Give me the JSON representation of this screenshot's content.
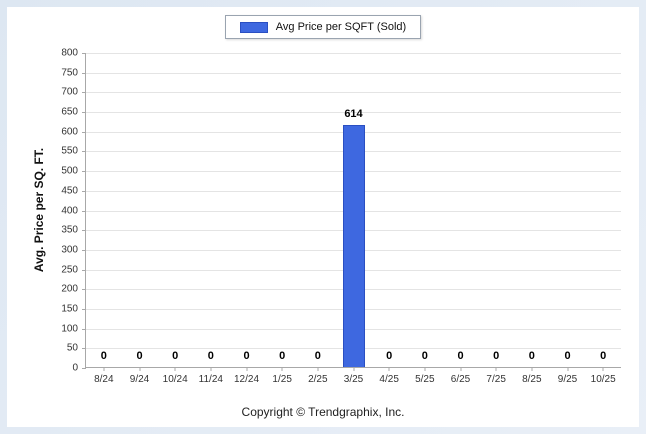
{
  "legend": {
    "label": "Avg Price per SQFT (Sold)"
  },
  "footer": {
    "text": "Copyright © Trendgraphix, Inc."
  },
  "colors": {
    "bar": "#3e68e0",
    "bar_border": "#2a4fc2"
  },
  "chart_data": {
    "type": "bar",
    "categories": [
      "8/24",
      "9/24",
      "10/24",
      "11/24",
      "12/24",
      "1/25",
      "2/25",
      "3/25",
      "4/25",
      "5/25",
      "6/25",
      "7/25",
      "8/25",
      "9/25",
      "10/25"
    ],
    "values": [
      0,
      0,
      0,
      0,
      0,
      0,
      0,
      614,
      0,
      0,
      0,
      0,
      0,
      0,
      0
    ],
    "title": "",
    "xlabel": "",
    "ylabel": "Avg. Price per SQ. FT.",
    "ylim": [
      0,
      800
    ],
    "ytick_step": 50,
    "grid": true,
    "legend_entries": [
      "Avg Price per SQFT (Sold)"
    ],
    "legend_position": "top"
  }
}
